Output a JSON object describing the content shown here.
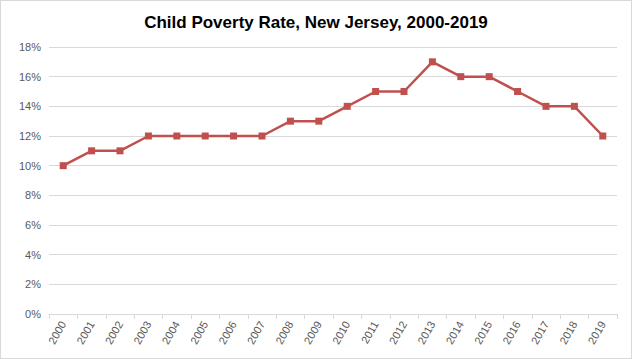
{
  "chart_data": {
    "type": "line",
    "title": "Child Poverty Rate, New Jersey, 2000-2019",
    "categories": [
      "2000",
      "2001",
      "2002",
      "2003",
      "2004",
      "2005",
      "2006",
      "2007",
      "2008",
      "2009",
      "2010",
      "2011",
      "2012",
      "2013",
      "2014",
      "2015",
      "2016",
      "2017",
      "2018",
      "2019"
    ],
    "values": [
      10,
      11,
      11,
      12,
      12,
      12,
      12,
      12,
      13,
      13,
      14,
      15,
      15,
      17,
      16,
      16,
      15,
      14,
      14,
      12
    ],
    "color": "#c0504d",
    "marker": "square",
    "ylim": [
      0,
      18
    ],
    "yticks": [
      {
        "value": 0,
        "label": "0%"
      },
      {
        "value": 2,
        "label": "2%"
      },
      {
        "value": 4,
        "label": "4%"
      },
      {
        "value": 6,
        "label": "6%"
      },
      {
        "value": 8,
        "label": "8%"
      },
      {
        "value": 10,
        "label": "10%"
      },
      {
        "value": 12,
        "label": "12%"
      },
      {
        "value": 14,
        "label": "14%"
      },
      {
        "value": 16,
        "label": "16%"
      },
      {
        "value": 18,
        "label": "18%"
      }
    ],
    "grid": true
  }
}
